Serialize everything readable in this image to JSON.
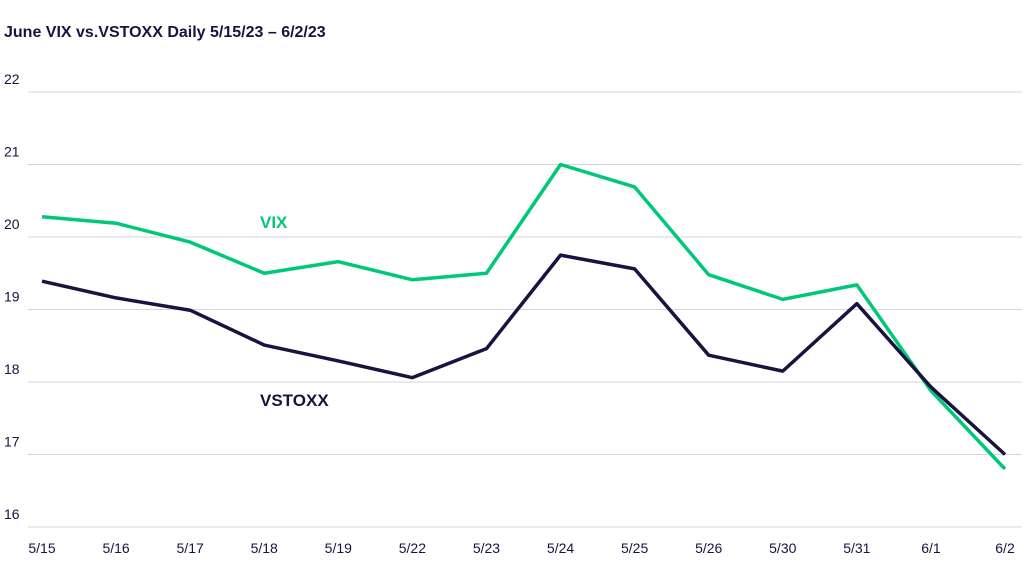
{
  "chart_data": {
    "type": "line",
    "title": "June VIX vs.VSTOXX Daily 5/15/23 – 6/2/23",
    "xlabel": "",
    "ylabel": "",
    "categories": [
      "5/15",
      "5/16",
      "5/17",
      "5/18",
      "5/19",
      "5/22",
      "5/23",
      "5/24",
      "5/25",
      "5/26",
      "5/30",
      "5/31",
      "6/1",
      "6/2"
    ],
    "ylim": [
      16,
      22
    ],
    "yticks": [
      16,
      17,
      18,
      19,
      20,
      21,
      22
    ],
    "grid": true,
    "series": [
      {
        "name": "VIX",
        "color": "#00c878",
        "values": [
          20.28,
          20.19,
          19.93,
          19.5,
          19.66,
          19.41,
          19.5,
          21.0,
          20.69,
          19.48,
          19.14,
          19.34,
          17.88,
          16.8
        ]
      },
      {
        "name": "VSTOXX",
        "color": "#1a1240",
        "values": [
          19.39,
          19.16,
          18.99,
          18.51,
          18.29,
          18.06,
          18.46,
          19.75,
          19.56,
          18.37,
          18.15,
          19.08,
          17.93,
          17.0
        ]
      }
    ]
  }
}
